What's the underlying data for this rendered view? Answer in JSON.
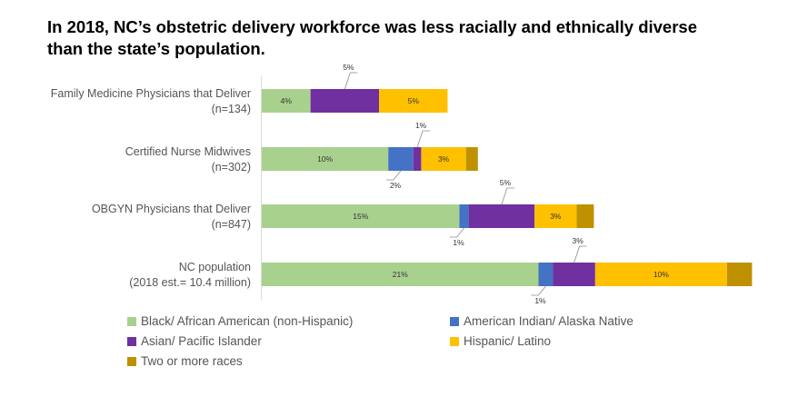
{
  "title_lines": [
    "In 2018, NC’s obstetric delivery workforce was less racially and ethnically diverse",
    "than the state’s population."
  ],
  "chart_data": {
    "type": "bar",
    "orientation": "horizontal",
    "stacked": true,
    "categories": [
      [
        "Family Medicine Physicians that Deliver",
        "(n=134)"
      ],
      [
        "Certified Nurse Midwives",
        "(n=302)"
      ],
      [
        "OBGYN Physicians that Deliver",
        "(n=847)"
      ],
      [
        "NC population",
        "(2018 est.= 10.4 million)"
      ]
    ],
    "series": [
      {
        "name": "Black/ African American (non-Hispanic)",
        "color": "#a9d18e",
        "values": [
          3.7,
          9.6,
          15.0,
          21.0
        ],
        "labels": [
          "4%",
          "10%",
          "15%",
          "21%"
        ]
      },
      {
        "name": "American Indian/ Alaska Native",
        "color": "#4472c4",
        "values": [
          0.0,
          1.9,
          0.7,
          1.1
        ],
        "labels": [
          "",
          "2%",
          "1%",
          "1%"
        ]
      },
      {
        "name": "Asian/ Pacific Islander",
        "color": "#7030a0",
        "values": [
          5.2,
          0.6,
          5.0,
          3.2
        ],
        "labels": [
          "5%",
          "1%",
          "5%",
          "3%"
        ]
      },
      {
        "name": "Hispanic/ Latino",
        "color": "#ffc000",
        "values": [
          5.2,
          3.4,
          3.2,
          10.0
        ],
        "labels": [
          "5%",
          "3%",
          "3%",
          "10%"
        ]
      },
      {
        "name": "Two or more races",
        "color": "#bf9000",
        "values": [
          0.0,
          0.9,
          1.3,
          1.9
        ],
        "labels": [
          "",
          "",
          "",
          ""
        ]
      }
    ],
    "label_placement": [
      [
        "inside",
        "none",
        "above",
        "inside",
        "none"
      ],
      [
        "inside",
        "below",
        "above",
        "inside",
        "none"
      ],
      [
        "inside",
        "below",
        "above",
        "inside",
        "none"
      ],
      [
        "inside",
        "below",
        "above",
        "inside",
        "none"
      ]
    ],
    "legend_position": "bottom",
    "grid": false
  }
}
